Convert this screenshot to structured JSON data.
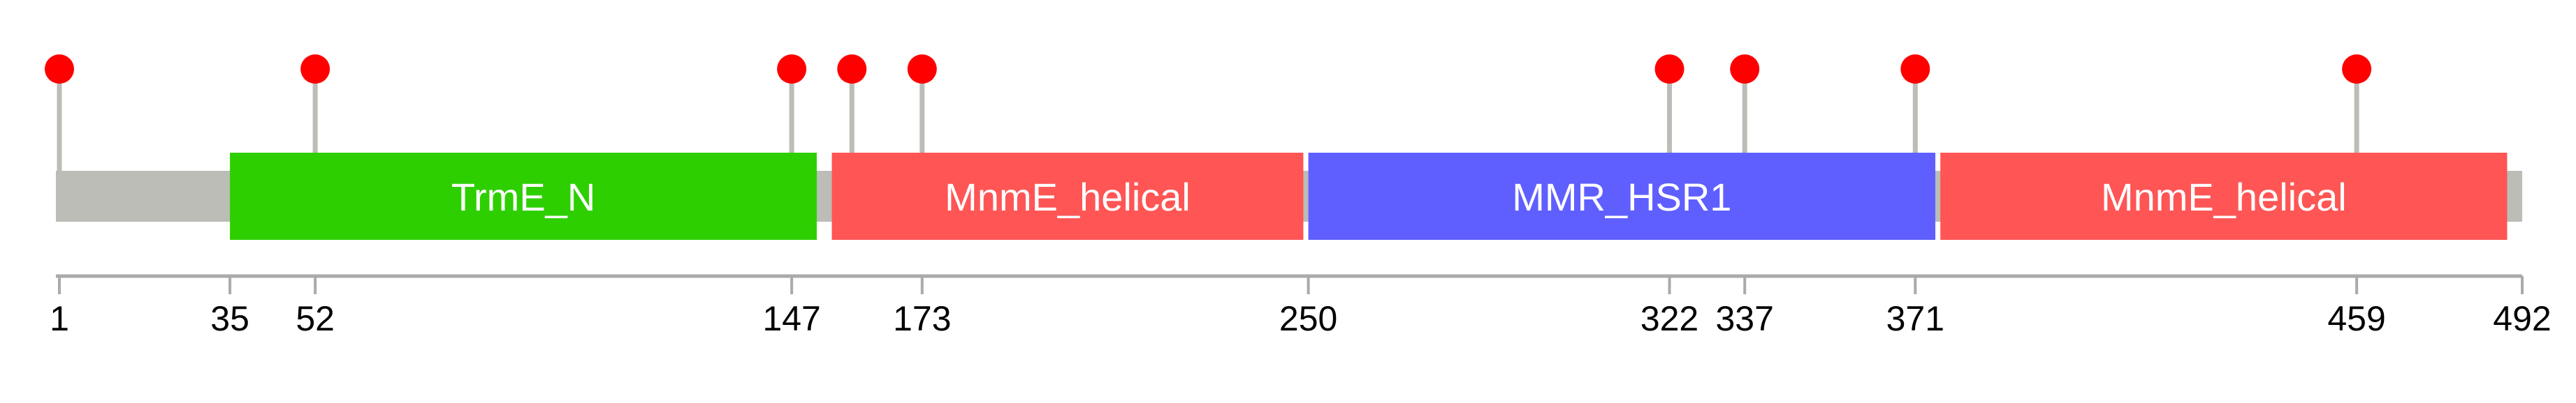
{
  "protein": {
    "length": 492,
    "backbone_color": "#bbbdb6"
  },
  "domains": [
    {
      "name": "TrmE_N",
      "start": 35,
      "end": 152,
      "color": "#2ecf00"
    },
    {
      "name": "MnmE_helical",
      "start": 155,
      "end": 249,
      "color": "#ff5555"
    },
    {
      "name": "MMR_HSR1",
      "start": 250,
      "end": 375,
      "color": "#5f5fff"
    },
    {
      "name": "MnmE_helical",
      "start": 376,
      "end": 489,
      "color": "#ff5555"
    }
  ],
  "mutations": [
    1,
    52,
    147,
    159,
    173,
    322,
    337,
    371,
    459
  ],
  "mutation_color": "#ff0000",
  "stem_color": "#bbbdb6",
  "axis": {
    "color": "#aaaaaa",
    "ticks": [
      1,
      35,
      52,
      147,
      173,
      250,
      322,
      337,
      371,
      459,
      492
    ]
  }
}
